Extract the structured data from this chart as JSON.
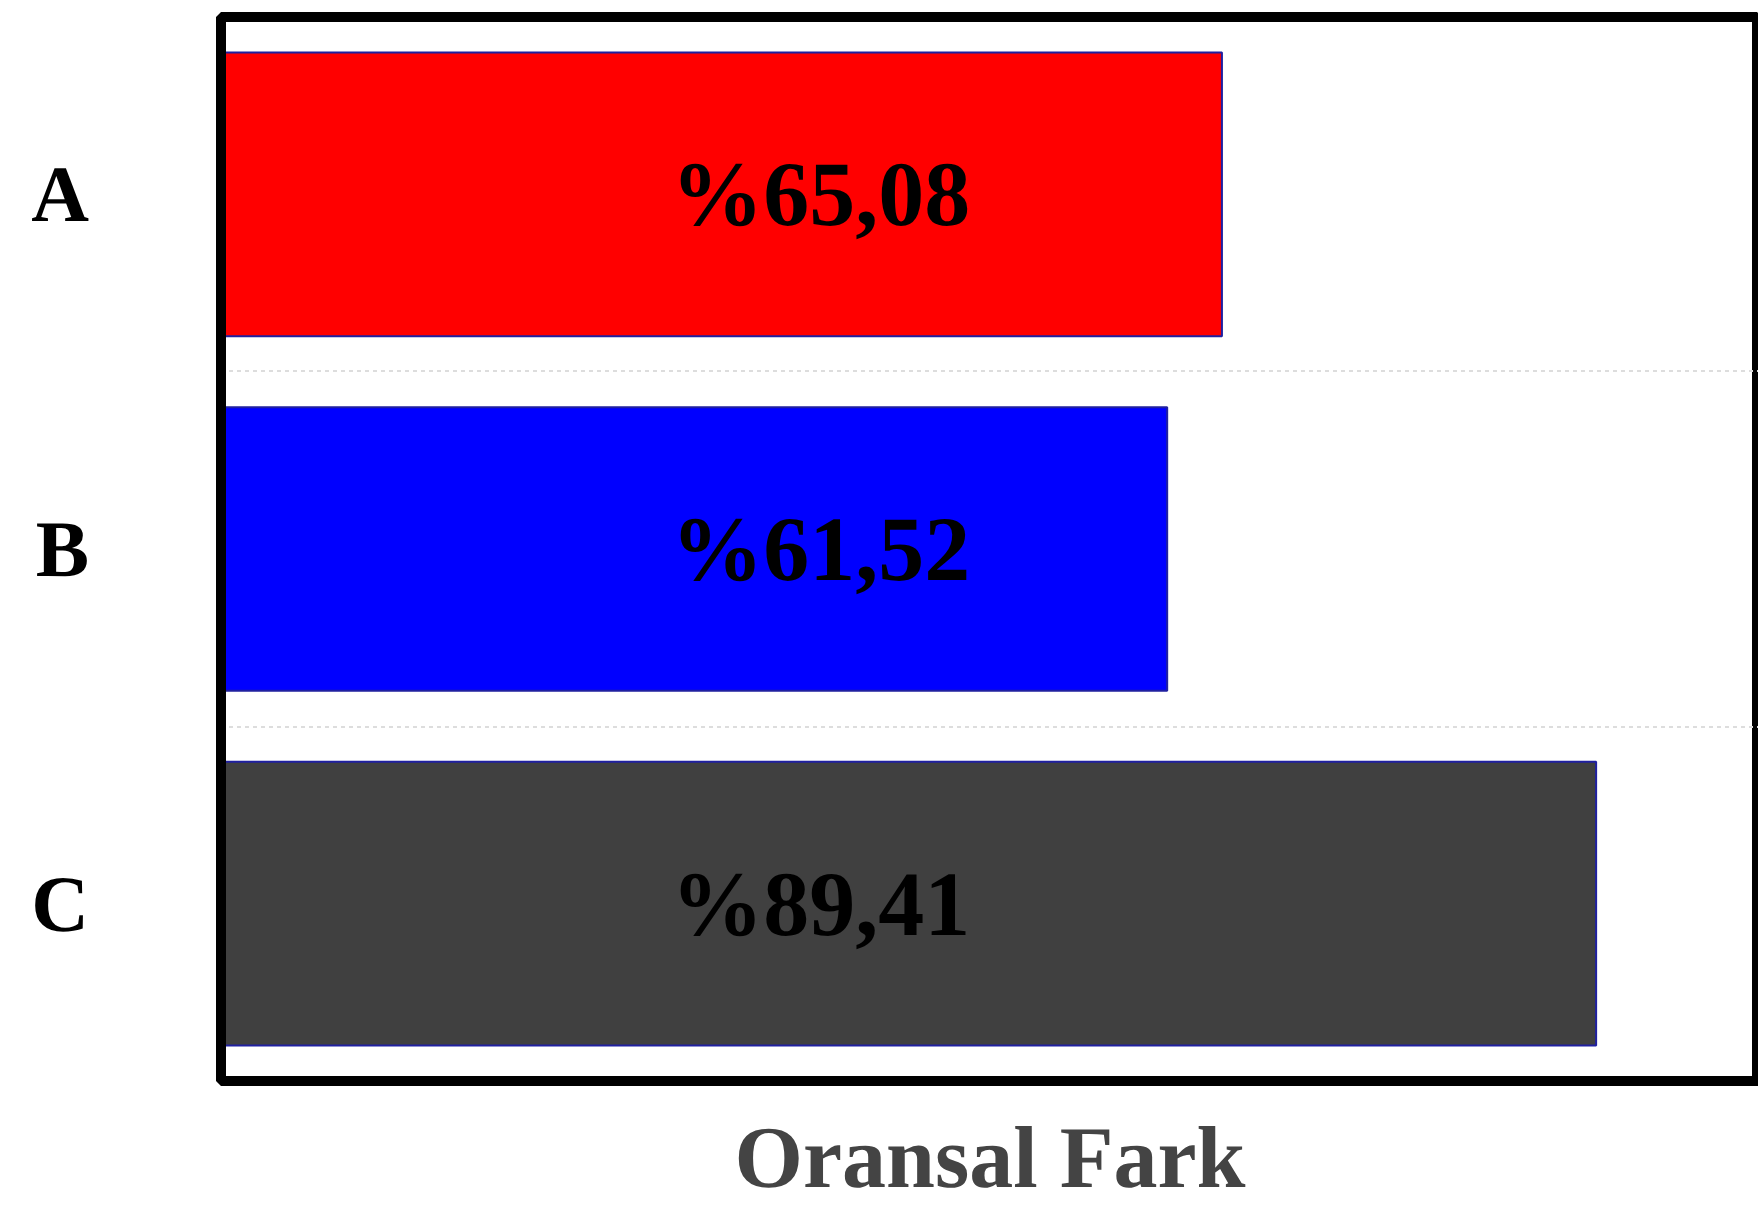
{
  "chart_data": {
    "type": "bar",
    "orientation": "horizontal",
    "xlabel": "Oransal Fark",
    "categories": [
      "A",
      "B",
      "C"
    ],
    "values": [
      65.08,
      61.52,
      89.41
    ],
    "colors": [
      "#ff0000",
      "#0000ff",
      "#404040"
    ],
    "value_labels": [
      "%65,08",
      "%61,52",
      "%89,41"
    ],
    "xlim": [
      0,
      100
    ],
    "grid": "y",
    "tick_labels": "y"
  }
}
